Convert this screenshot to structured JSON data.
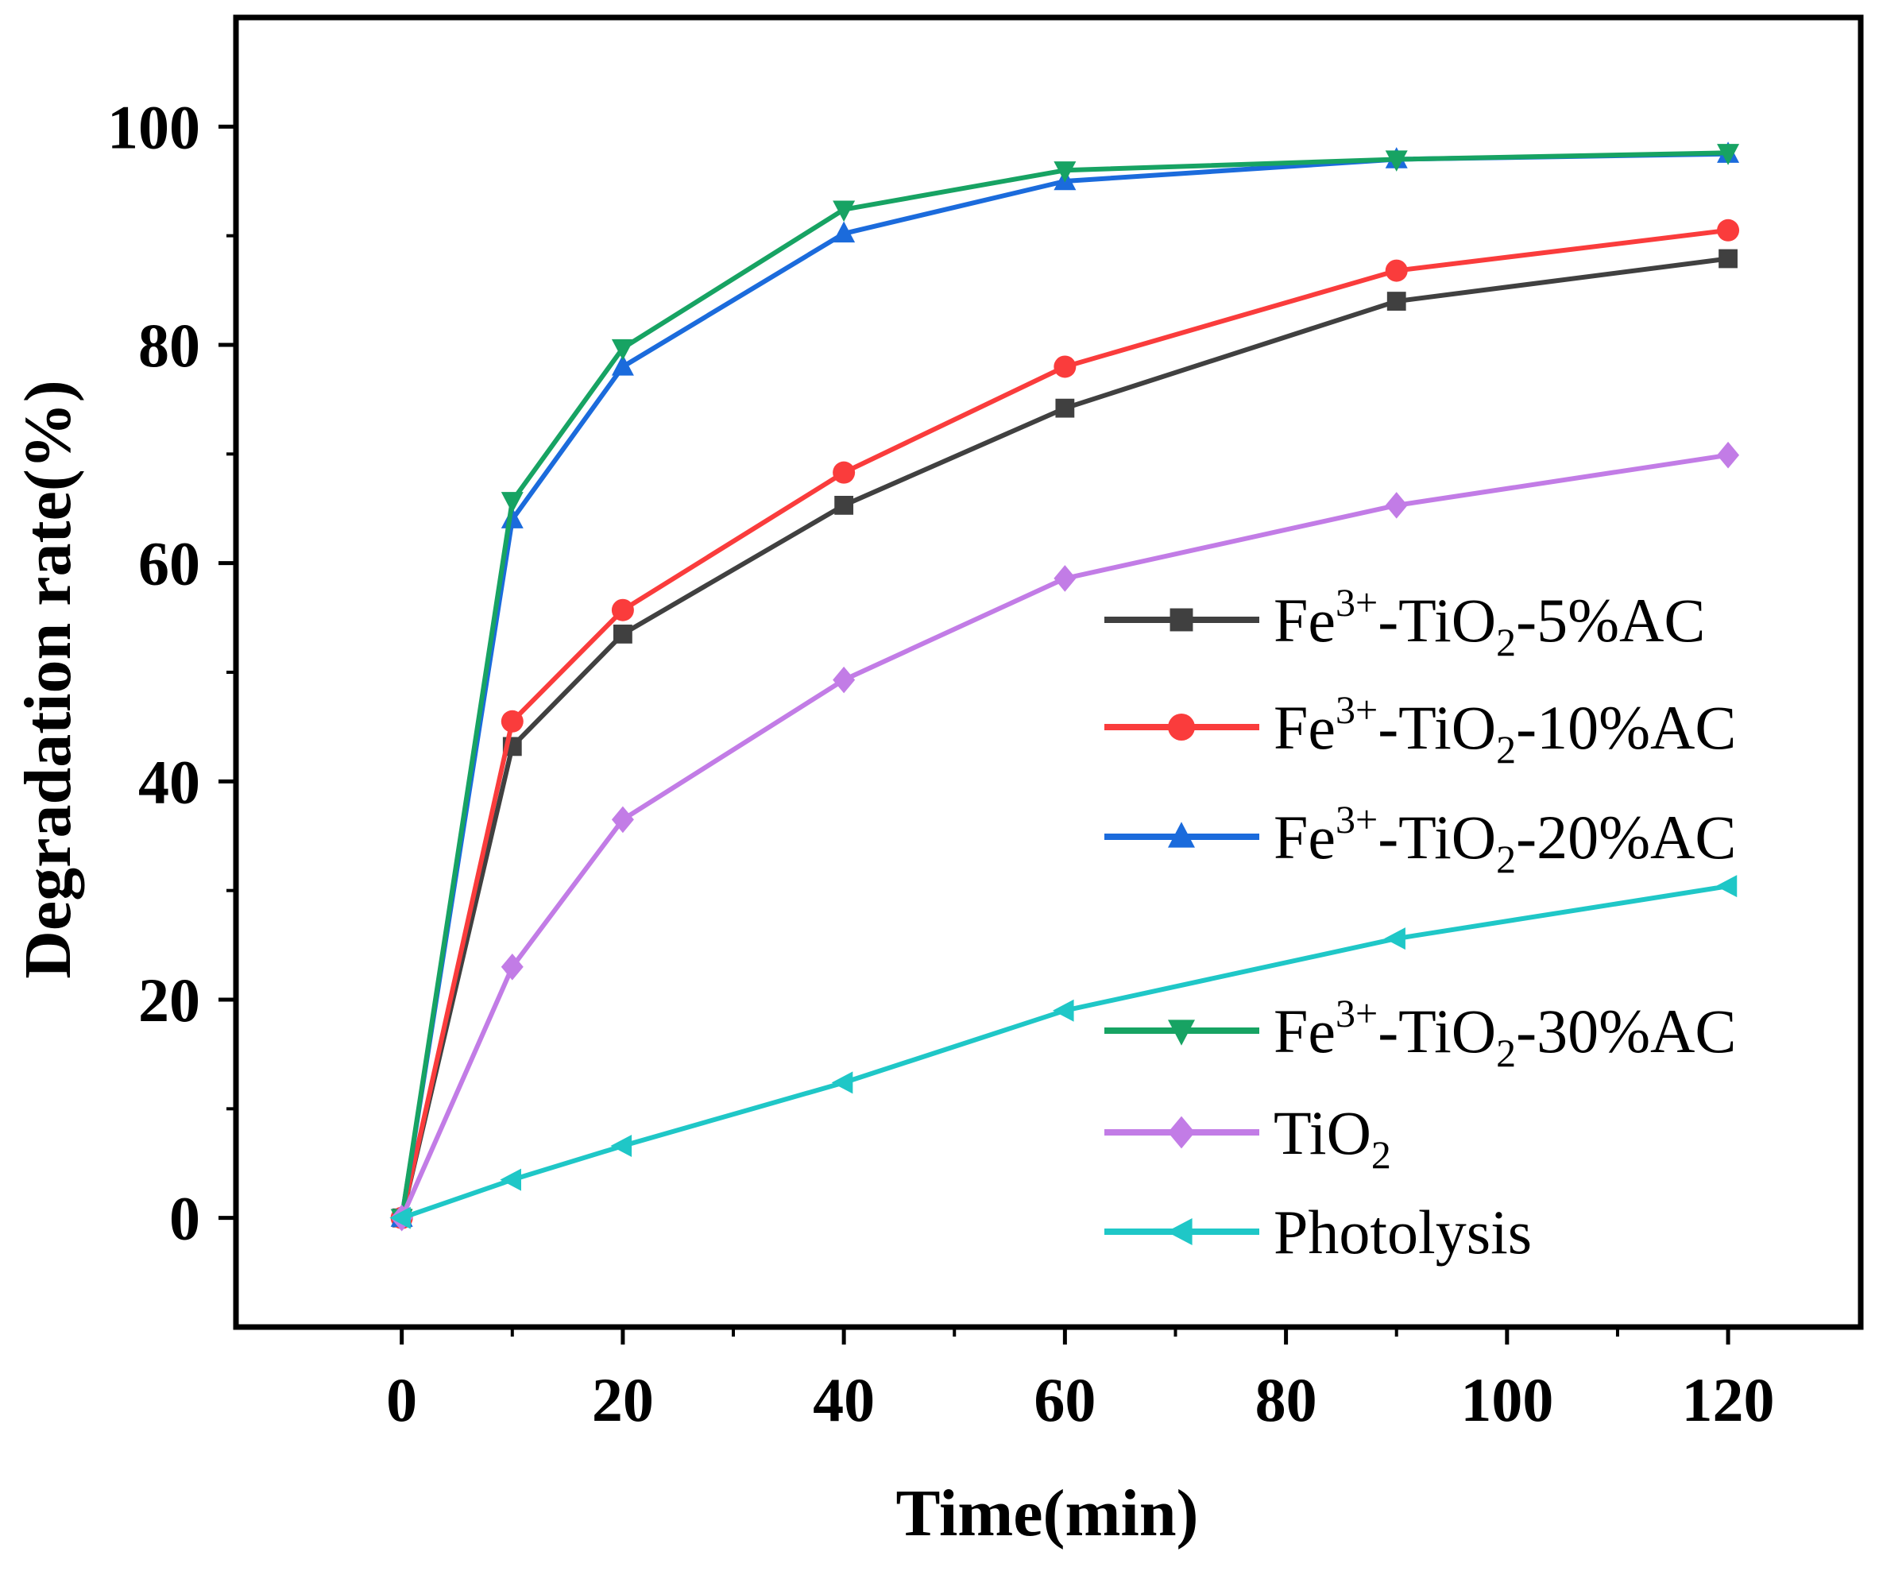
{
  "chart_data": {
    "type": "line",
    "title": "",
    "xlabel": "Time(min)",
    "ylabel": "Degradation rate(%)",
    "xlim": [
      -15,
      132
    ],
    "ylim": [
      -10,
      110
    ],
    "x_ticks": [
      0,
      20,
      40,
      60,
      80,
      100,
      120
    ],
    "y_ticks": [
      0,
      20,
      40,
      60,
      80,
      100
    ],
    "x_tick_labels": [
      "0",
      "20",
      "40",
      "60",
      "80",
      "100",
      "120"
    ],
    "y_tick_labels": [
      "0",
      "20",
      "40",
      "60",
      "80",
      "100"
    ],
    "x": [
      0,
      10,
      20,
      40,
      60,
      90,
      120
    ],
    "legend_position": "right",
    "series": [
      {
        "name": "Fe3+-TiO2-5%AC",
        "label_base": "Fe",
        "label_sup": "3+",
        "label_mid": "-TiO",
        "label_sub": "2",
        "label_end": "-5%AC",
        "color": "#404040",
        "marker": "square",
        "values": [
          0,
          43.2,
          53.5,
          65.3,
          74.2,
          84.0,
          87.9
        ]
      },
      {
        "name": "Fe3+-TiO2-10%AC",
        "label_base": "Fe",
        "label_sup": "3+",
        "label_mid": "-TiO",
        "label_sub": "2",
        "label_end": "-10%AC",
        "color": "#fa3c3c",
        "marker": "circle",
        "values": [
          0,
          45.5,
          55.7,
          68.3,
          78.0,
          86.8,
          90.5
        ]
      },
      {
        "name": "Fe3+-TiO2-20%AC",
        "label_base": "Fe",
        "label_sup": "3+",
        "label_mid": "-TiO",
        "label_sub": "2",
        "label_end": "-20%AC",
        "color": "#1b6bdc",
        "marker": "triangle-up",
        "values": [
          0,
          64.0,
          78.0,
          90.2,
          95.0,
          97.0,
          97.5
        ]
      },
      {
        "name": "Fe3+-TiO2-30%AC",
        "label_base": "Fe",
        "label_sup": "3+",
        "label_mid": "-TiO",
        "label_sub": "2",
        "label_end": "-30%AC",
        "color": "#17a363",
        "marker": "triangle-down",
        "values": [
          0,
          65.7,
          79.7,
          92.4,
          96.0,
          97.0,
          97.6
        ]
      },
      {
        "name": "TiO2",
        "label_base": "TiO",
        "label_sup": "",
        "label_mid": "",
        "label_sub": "2",
        "label_end": "",
        "color": "#c27ce6",
        "marker": "diamond",
        "values": [
          0,
          23.0,
          36.5,
          49.3,
          58.6,
          65.3,
          69.9
        ]
      },
      {
        "name": "Photolysis",
        "label_base": "Photolysis",
        "label_sup": "",
        "label_mid": "",
        "label_sub": "",
        "label_end": "",
        "color": "#1fc7c7",
        "marker": "triangle-left",
        "values": [
          0,
          3.5,
          6.6,
          12.4,
          19.0,
          25.6,
          30.4
        ]
      }
    ]
  }
}
